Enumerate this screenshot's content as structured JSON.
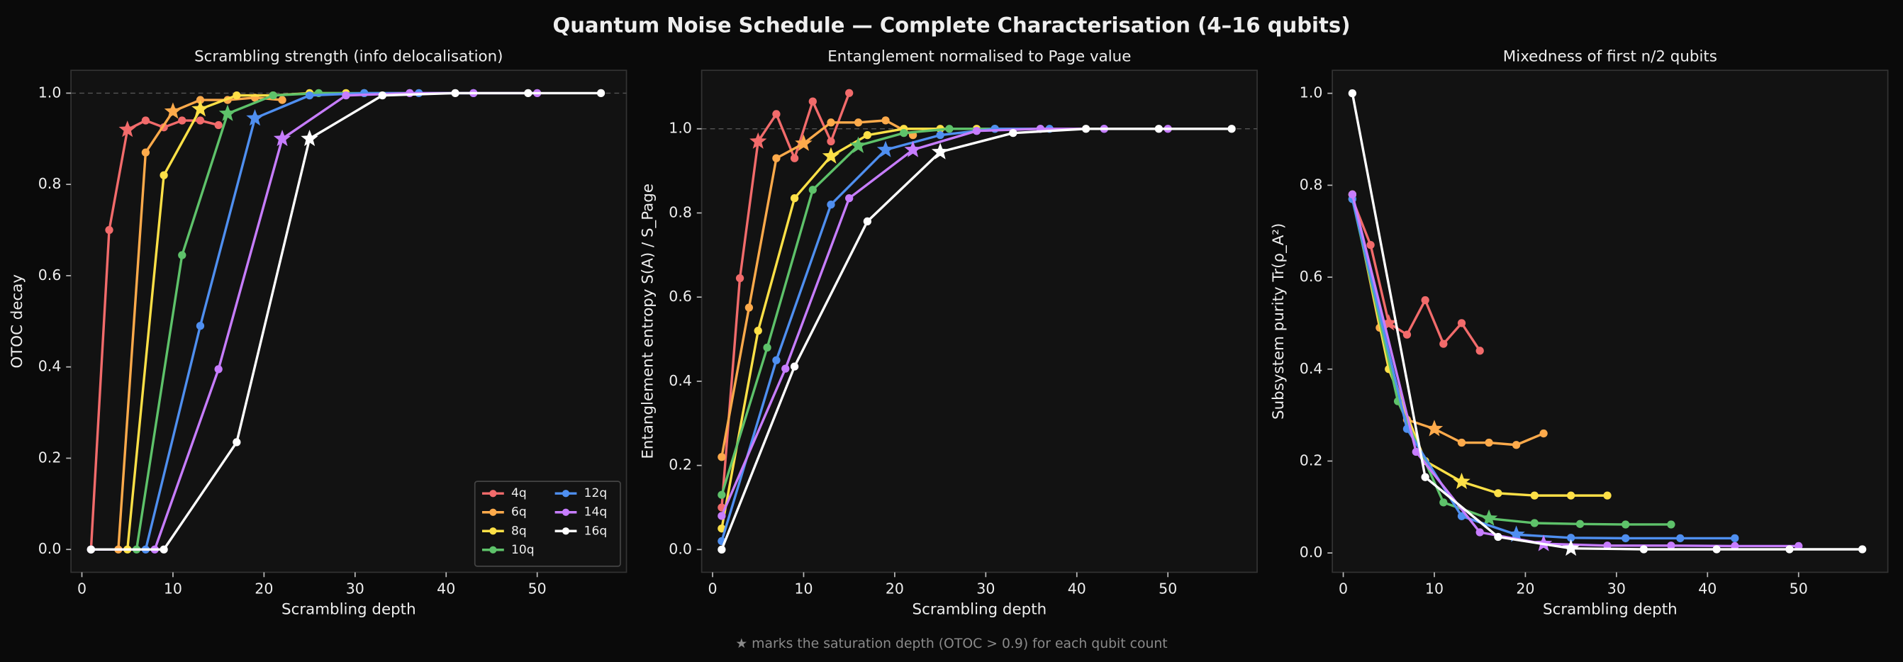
{
  "title": "Quantum Noise Schedule — Complete Characterisation (4–16 qubits)",
  "footnote": "★ marks the saturation depth (OTOC > 0.9) for each qubit count",
  "chart_data": [
    {
      "type": "line",
      "title": "Scrambling strength (info delocalisation)",
      "xlabel": "Scrambling depth",
      "ylabel": "OTOC decay",
      "xlim": [
        -1.2,
        59.8
      ],
      "ylim": [
        -0.05,
        1.05
      ],
      "xticks": [
        0,
        10,
        20,
        30,
        40,
        50
      ],
      "yticks": [
        {
          "value": 0,
          "label": "0.0"
        },
        0.2,
        0.4,
        0.6,
        0.8,
        {
          "value": 1,
          "label": "1.0"
        }
      ],
      "hline": 1,
      "legend": "lower right",
      "series": [
        {
          "name": "4q",
          "color": "#f26b6b",
          "x": [
            1,
            3,
            5,
            7,
            9,
            11,
            13,
            15
          ],
          "values": [
            0,
            0.7,
            0.92,
            0.94,
            0.925,
            0.94,
            0.94,
            0.93
          ],
          "saturation_depth": 5
        },
        {
          "name": "6q",
          "color": "#fdaa4b",
          "x": [
            1,
            4,
            7,
            10,
            13,
            16,
            19,
            22
          ],
          "values": [
            0,
            0,
            0.87,
            0.96,
            0.985,
            0.985,
            0.99,
            0.985
          ],
          "saturation_depth": 10
        },
        {
          "name": "8q",
          "color": "#fde047",
          "x": [
            1,
            5,
            9,
            13,
            17,
            21,
            25,
            29
          ],
          "values": [
            0,
            0,
            0.82,
            0.965,
            0.995,
            0.995,
            1.0,
            1.0
          ],
          "saturation_depth": 13
        },
        {
          "name": "10q",
          "color": "#5ec26a",
          "x": [
            1,
            6,
            11,
            16,
            21,
            26,
            31,
            36
          ],
          "values": [
            0,
            0,
            0.645,
            0.955,
            0.995,
            1.0,
            1.0,
            1.0
          ],
          "saturation_depth": 16
        },
        {
          "name": "12q",
          "color": "#4f8ff0",
          "x": [
            1,
            7,
            13,
            19,
            25,
            31,
            37,
            43
          ],
          "values": [
            0,
            0,
            0.49,
            0.945,
            0.995,
            1.0,
            1.0,
            1.0
          ],
          "saturation_depth": 19
        },
        {
          "name": "14q",
          "color": "#c77dff",
          "x": [
            1,
            8,
            15,
            22,
            29,
            36,
            43,
            50
          ],
          "values": [
            0,
            0,
            0.395,
            0.9,
            0.995,
            1.0,
            1.0,
            1.0
          ],
          "saturation_depth": 22
        },
        {
          "name": "16q",
          "color": "#ffffff",
          "x": [
            1,
            9,
            17,
            25,
            33,
            41,
            49,
            57
          ],
          "values": [
            0,
            0,
            0.235,
            0.9,
            0.995,
            1.0,
            1.0,
            1.0
          ],
          "saturation_depth": 25
        }
      ]
    },
    {
      "type": "line",
      "title": "Entanglement normalised to Page value",
      "xlabel": "Scrambling depth",
      "ylabel": "Entanglement entropy S(A) / S_Page",
      "xlim": [
        -1.2,
        59.8
      ],
      "ylim": [
        -0.054,
        1.139
      ],
      "xticks": [
        0,
        10,
        20,
        30,
        40,
        50
      ],
      "yticks": [
        {
          "value": 0,
          "label": "0.0"
        },
        0.2,
        0.4,
        0.6,
        0.8,
        {
          "value": 1,
          "label": "1.0"
        }
      ],
      "hline": 1,
      "series": [
        {
          "color": "#f26b6b",
          "x": [
            1,
            3,
            5,
            7,
            9,
            11,
            13,
            15
          ],
          "values": [
            0.1,
            0.645,
            0.97,
            1.035,
            0.93,
            1.065,
            0.97,
            1.085
          ],
          "saturation_depth": 5
        },
        {
          "color": "#fdaa4b",
          "x": [
            1,
            4,
            7,
            10,
            13,
            16,
            19,
            22
          ],
          "values": [
            0.22,
            0.575,
            0.93,
            0.965,
            1.015,
            1.015,
            1.02,
            0.985
          ],
          "saturation_depth": 10
        },
        {
          "color": "#fde047",
          "x": [
            1,
            5,
            9,
            13,
            17,
            21,
            25,
            29
          ],
          "values": [
            0.05,
            0.52,
            0.835,
            0.935,
            0.985,
            1.0,
            1.0,
            1.0
          ],
          "saturation_depth": 13
        },
        {
          "color": "#5ec26a",
          "x": [
            1,
            6,
            11,
            16,
            21,
            26,
            31,
            36
          ],
          "values": [
            0.13,
            0.48,
            0.855,
            0.96,
            0.99,
            1.0,
            1.0,
            1.0
          ],
          "saturation_depth": 16
        },
        {
          "color": "#4f8ff0",
          "x": [
            1,
            7,
            13,
            19,
            25,
            31,
            37,
            43
          ],
          "values": [
            0.02,
            0.45,
            0.82,
            0.95,
            0.985,
            1.0,
            1.0,
            1.0
          ],
          "saturation_depth": 19
        },
        {
          "color": "#c77dff",
          "x": [
            1,
            8,
            15,
            22,
            29,
            36,
            43,
            50
          ],
          "values": [
            0.08,
            0.43,
            0.835,
            0.95,
            0.995,
            1.0,
            1.0,
            1.0
          ],
          "saturation_depth": 22
        },
        {
          "color": "#ffffff",
          "x": [
            1,
            9,
            17,
            25,
            33,
            41,
            49,
            57
          ],
          "values": [
            0,
            0.435,
            0.78,
            0.945,
            0.99,
            1.0,
            1.0,
            1.0
          ],
          "saturation_depth": 25
        }
      ]
    },
    {
      "type": "line",
      "title": "Mixedness of first n/2 qubits",
      "xlabel": "Scrambling depth",
      "ylabel": "Subsystem purity Tr(ρ_A²)",
      "xlim": [
        -1.2,
        59.8
      ],
      "ylim": [
        -0.042,
        1.05
      ],
      "xticks": [
        0,
        10,
        20,
        30,
        40,
        50
      ],
      "yticks": [
        {
          "value": 0,
          "label": "0.0"
        },
        0.2,
        0.4,
        0.6,
        0.8,
        {
          "value": 1,
          "label": "1.0"
        }
      ],
      "series": [
        {
          "color": "#f26b6b",
          "x": [
            1,
            3,
            5,
            7,
            9,
            11,
            13,
            15
          ],
          "values": [
            0.77,
            0.67,
            0.5,
            0.475,
            0.55,
            0.455,
            0.5,
            0.44
          ],
          "saturation_depth": 5
        },
        {
          "color": "#fdaa4b",
          "x": [
            1,
            4,
            7,
            10,
            13,
            16,
            19,
            22
          ],
          "values": [
            0.78,
            0.49,
            0.29,
            0.27,
            0.24,
            0.24,
            0.235,
            0.26
          ],
          "saturation_depth": 10
        },
        {
          "color": "#fde047",
          "x": [
            1,
            5,
            9,
            13,
            17,
            21,
            25,
            29
          ],
          "values": [
            0.78,
            0.4,
            0.2,
            0.155,
            0.13,
            0.125,
            0.125,
            0.125
          ],
          "saturation_depth": 13
        },
        {
          "color": "#5ec26a",
          "x": [
            1,
            6,
            11,
            16,
            21,
            26,
            31,
            36
          ],
          "values": [
            0.77,
            0.33,
            0.11,
            0.075,
            0.065,
            0.063,
            0.062,
            0.062
          ],
          "saturation_depth": 16
        },
        {
          "color": "#4f8ff0",
          "x": [
            1,
            7,
            13,
            19,
            25,
            31,
            37,
            43
          ],
          "values": [
            0.77,
            0.27,
            0.08,
            0.04,
            0.033,
            0.032,
            0.032,
            0.032
          ],
          "saturation_depth": 19
        },
        {
          "color": "#c77dff",
          "x": [
            1,
            8,
            15,
            22,
            29,
            36,
            43,
            50
          ],
          "values": [
            0.78,
            0.22,
            0.045,
            0.02,
            0.016,
            0.016,
            0.015,
            0.015
          ],
          "saturation_depth": 22
        },
        {
          "color": "#ffffff",
          "x": [
            1,
            9,
            17,
            25,
            33,
            41,
            49,
            57
          ],
          "values": [
            1.0,
            0.165,
            0.035,
            0.01,
            0.008,
            0.008,
            0.008,
            0.008
          ],
          "saturation_depth": 25
        }
      ]
    }
  ]
}
